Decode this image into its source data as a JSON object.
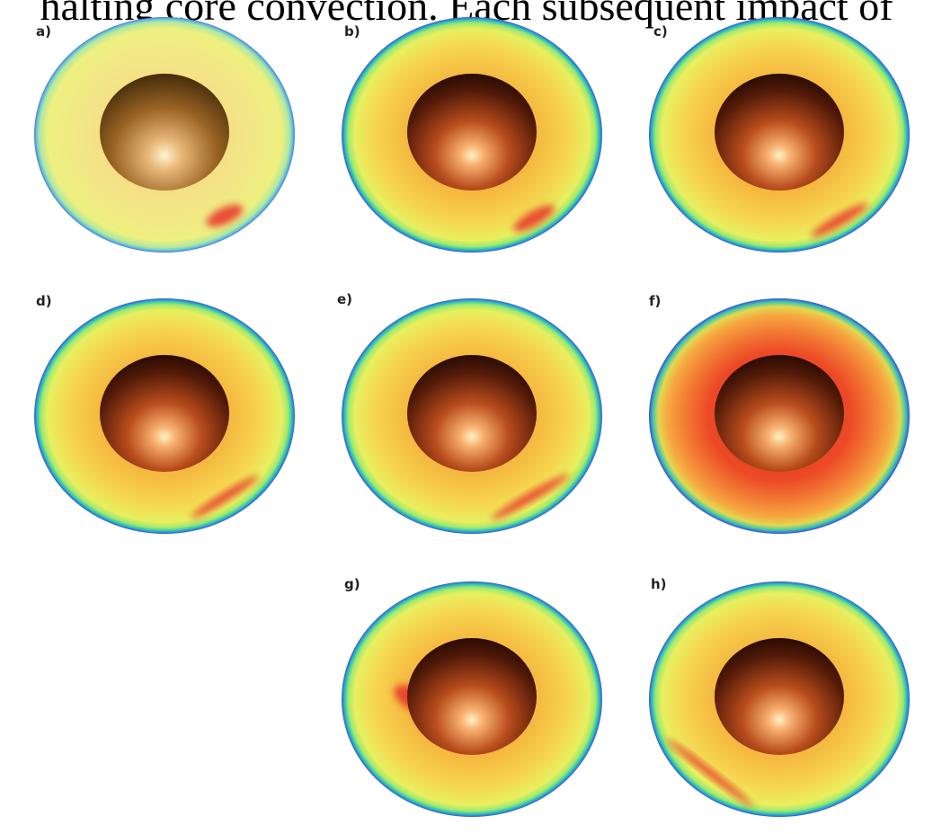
{
  "header_text": "halting core convection. Each subsequent impact of",
  "panels": [
    {
      "label": "a)"
    },
    {
      "label": "b)"
    },
    {
      "label": "c)"
    },
    {
      "label": "d)"
    },
    {
      "label": "e)"
    },
    {
      "label": "f)"
    },
    {
      "label": "g)"
    },
    {
      "label": "h)"
    }
  ]
}
